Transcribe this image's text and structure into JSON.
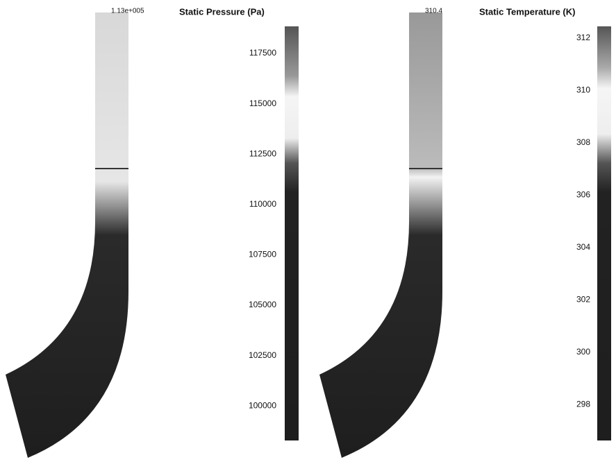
{
  "panels": [
    {
      "probe_label": "1.13e+005",
      "title": "Static Pressure (Pa)",
      "scale_labels": [
        "117500",
        "115000",
        "112500",
        "110000",
        "107500",
        "105000",
        "102500",
        "100000"
      ]
    },
    {
      "probe_label": "310.4",
      "title": "Static Temperature (K)",
      "scale_labels": [
        "312",
        "310",
        "308",
        "306",
        "304",
        "302",
        "300",
        "298"
      ]
    }
  ]
}
